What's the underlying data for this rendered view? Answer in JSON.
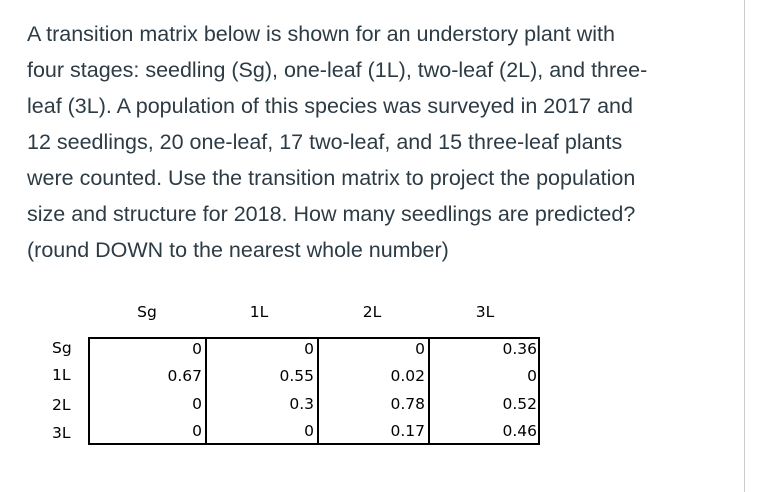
{
  "question": {
    "lines": [
      "A transition matrix below is shown for an understory plant with",
      "four stages: seedling (Sg), one-leaf (1L), two-leaf (2L), and three-",
      "leaf (3L). A population of this species was surveyed in 2017 and",
      "12 seedlings, 20 one-leaf, 17 two-leaf, and 15 three-leaf plants",
      "were counted. Use the transition matrix to project the population",
      "size and structure for 2018. How many seedlings are predicted?",
      "(round DOWN to the nearest whole number)"
    ]
  },
  "matrix": {
    "column_headers": [
      "Sg",
      "1L",
      "2L",
      "3L"
    ],
    "row_headers": [
      "Sg",
      "1L",
      "2L",
      "3L"
    ],
    "rows": [
      [
        "0",
        "0",
        "0",
        "0.36"
      ],
      [
        "0.67",
        "0.55",
        "0.02",
        "0"
      ],
      [
        "0",
        "0.3",
        "0.78",
        "0.52"
      ],
      [
        "0",
        "0",
        "0.17",
        "0.46"
      ]
    ]
  }
}
